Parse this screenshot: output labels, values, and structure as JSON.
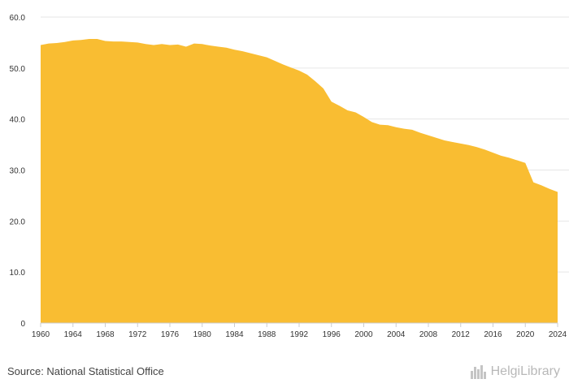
{
  "chart_data": {
    "type": "area",
    "color": "#f9bd32",
    "grid": true,
    "ylim": [
      0,
      60
    ],
    "yticks": [
      {
        "value": 0,
        "label": "0"
      },
      {
        "value": 10,
        "label": "10.0"
      },
      {
        "value": 20,
        "label": "20.0"
      },
      {
        "value": 30,
        "label": "30.0"
      },
      {
        "value": 40,
        "label": "40.0"
      },
      {
        "value": 50,
        "label": "50.0"
      },
      {
        "value": 60,
        "label": "60.0"
      }
    ],
    "xticks": [
      "1960",
      "1964",
      "1968",
      "1972",
      "1976",
      "1980",
      "1984",
      "1988",
      "1992",
      "1996",
      "2000",
      "2004",
      "2008",
      "2012",
      "2016",
      "2020",
      "2024"
    ],
    "x": [
      1960,
      1961,
      1962,
      1963,
      1964,
      1965,
      1966,
      1967,
      1968,
      1969,
      1970,
      1971,
      1972,
      1973,
      1974,
      1975,
      1976,
      1977,
      1978,
      1979,
      1980,
      1981,
      1982,
      1983,
      1984,
      1985,
      1986,
      1987,
      1988,
      1989,
      1990,
      1991,
      1992,
      1993,
      1994,
      1995,
      1996,
      1997,
      1998,
      1999,
      2000,
      2001,
      2002,
      2003,
      2004,
      2005,
      2006,
      2007,
      2008,
      2009,
      2010,
      2011,
      2012,
      2013,
      2014,
      2015,
      2016,
      2017,
      2018,
      2019,
      2020,
      2021,
      2022,
      2023,
      2024
    ],
    "y": [
      54.5,
      54.8,
      54.9,
      55.1,
      55.4,
      55.5,
      55.7,
      55.7,
      55.3,
      55.2,
      55.2,
      55.1,
      55.0,
      54.7,
      54.5,
      54.7,
      54.5,
      54.6,
      54.2,
      54.8,
      54.7,
      54.4,
      54.2,
      54.0,
      53.6,
      53.3,
      52.9,
      52.5,
      52.1,
      51.4,
      50.7,
      50.1,
      49.5,
      48.7,
      47.4,
      46.0,
      43.4,
      42.6,
      41.7,
      41.3,
      40.4,
      39.4,
      38.9,
      38.8,
      38.4,
      38.1,
      37.9,
      37.3,
      36.8,
      36.3,
      35.8,
      35.5,
      35.2,
      34.9,
      34.5,
      34.0,
      33.4,
      32.8,
      32.4,
      31.9,
      31.4,
      27.6,
      27.0,
      26.3,
      25.7
    ]
  },
  "footer": {
    "source": "Source: National Statistical Office",
    "brand": "HelgiLibrary",
    "brand_icon": "skyline-icon"
  }
}
